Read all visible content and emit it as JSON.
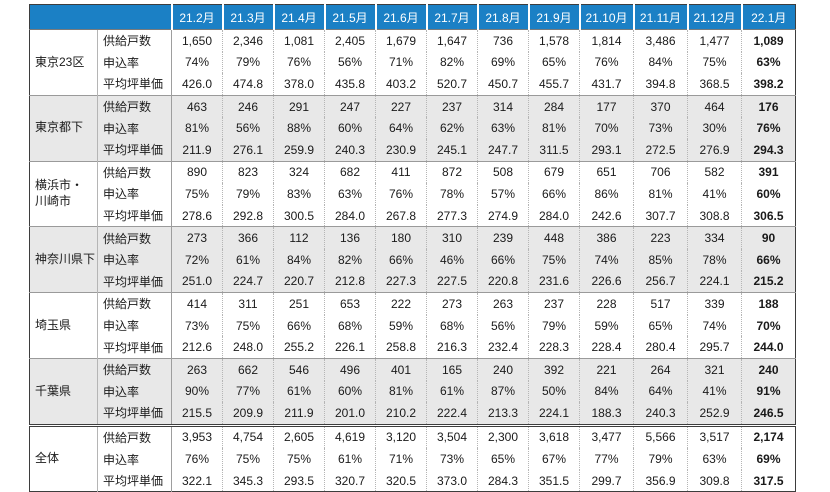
{
  "colors": {
    "header_bg": "#1b80c5",
    "header_text": "#ffffff",
    "band_bg": "#e8e8e8",
    "outer_border": "#3d3d3d"
  },
  "chart_data": {
    "type": "table",
    "columns": [
      "21.2月",
      "21.3月",
      "21.4月",
      "21.5月",
      "21.6月",
      "21.7月",
      "21.8月",
      "21.9月",
      "21.10月",
      "21.11月",
      "21.12月",
      "22.1月"
    ],
    "metric_labels": [
      "供給戸数",
      "申込率",
      "平均坪単価"
    ],
    "groups": [
      {
        "region": "東京23区",
        "rows": [
          [
            "1,650",
            "2,346",
            "1,081",
            "2,405",
            "1,679",
            "1,647",
            "736",
            "1,578",
            "1,814",
            "3,486",
            "1,477",
            "1,089"
          ],
          [
            "74%",
            "79%",
            "76%",
            "56%",
            "71%",
            "82%",
            "69%",
            "65%",
            "76%",
            "84%",
            "75%",
            "63%"
          ],
          [
            "426.0",
            "474.8",
            "378.0",
            "435.8",
            "403.2",
            "520.7",
            "450.7",
            "455.7",
            "431.7",
            "394.8",
            "368.5",
            "398.2"
          ]
        ]
      },
      {
        "region": "東京都下",
        "rows": [
          [
            "463",
            "246",
            "291",
            "247",
            "227",
            "237",
            "314",
            "284",
            "177",
            "370",
            "464",
            "176"
          ],
          [
            "81%",
            "56%",
            "88%",
            "60%",
            "64%",
            "62%",
            "63%",
            "81%",
            "70%",
            "73%",
            "30%",
            "76%"
          ],
          [
            "211.9",
            "276.1",
            "259.9",
            "240.3",
            "230.9",
            "245.1",
            "247.7",
            "311.5",
            "293.1",
            "272.5",
            "276.9",
            "294.3"
          ]
        ]
      },
      {
        "region": "横浜市・\n川崎市",
        "rows": [
          [
            "890",
            "823",
            "324",
            "682",
            "411",
            "872",
            "508",
            "679",
            "651",
            "706",
            "582",
            "391"
          ],
          [
            "75%",
            "79%",
            "83%",
            "63%",
            "76%",
            "78%",
            "57%",
            "66%",
            "86%",
            "81%",
            "41%",
            "60%"
          ],
          [
            "278.6",
            "292.8",
            "300.5",
            "284.0",
            "267.8",
            "277.3",
            "274.9",
            "284.0",
            "242.6",
            "307.7",
            "308.8",
            "306.5"
          ]
        ]
      },
      {
        "region": "神奈川県下",
        "rows": [
          [
            "273",
            "366",
            "112",
            "136",
            "180",
            "310",
            "239",
            "448",
            "386",
            "223",
            "334",
            "90"
          ],
          [
            "72%",
            "61%",
            "84%",
            "82%",
            "66%",
            "46%",
            "66%",
            "75%",
            "74%",
            "85%",
            "78%",
            "66%"
          ],
          [
            "251.0",
            "224.7",
            "220.7",
            "212.8",
            "227.3",
            "227.5",
            "220.8",
            "231.6",
            "226.6",
            "256.7",
            "224.1",
            "215.2"
          ]
        ]
      },
      {
        "region": "埼玉県",
        "rows": [
          [
            "414",
            "311",
            "251",
            "653",
            "222",
            "273",
            "263",
            "237",
            "228",
            "517",
            "339",
            "188"
          ],
          [
            "73%",
            "75%",
            "66%",
            "68%",
            "59%",
            "68%",
            "56%",
            "79%",
            "59%",
            "65%",
            "74%",
            "70%"
          ],
          [
            "212.6",
            "248.0",
            "255.2",
            "226.1",
            "258.8",
            "216.3",
            "232.4",
            "228.3",
            "228.4",
            "280.4",
            "295.7",
            "244.0"
          ]
        ]
      },
      {
        "region": "千葉県",
        "rows": [
          [
            "263",
            "662",
            "546",
            "496",
            "401",
            "165",
            "240",
            "392",
            "221",
            "264",
            "321",
            "240"
          ],
          [
            "90%",
            "77%",
            "61%",
            "60%",
            "81%",
            "61%",
            "87%",
            "50%",
            "84%",
            "64%",
            "41%",
            "91%"
          ],
          [
            "215.5",
            "209.9",
            "211.9",
            "201.0",
            "210.2",
            "222.4",
            "213.3",
            "224.1",
            "188.3",
            "240.3",
            "252.9",
            "246.5"
          ]
        ]
      },
      {
        "region": "全体",
        "rows": [
          [
            "3,953",
            "4,754",
            "2,605",
            "4,619",
            "3,120",
            "3,504",
            "2,300",
            "3,618",
            "3,477",
            "5,566",
            "3,517",
            "2,174"
          ],
          [
            "76%",
            "75%",
            "75%",
            "61%",
            "71%",
            "73%",
            "65%",
            "67%",
            "77%",
            "79%",
            "63%",
            "69%"
          ],
          [
            "322.1",
            "345.3",
            "293.5",
            "320.7",
            "320.5",
            "373.0",
            "284.3",
            "351.5",
            "299.7",
            "356.9",
            "309.8",
            "317.5"
          ]
        ]
      }
    ]
  }
}
